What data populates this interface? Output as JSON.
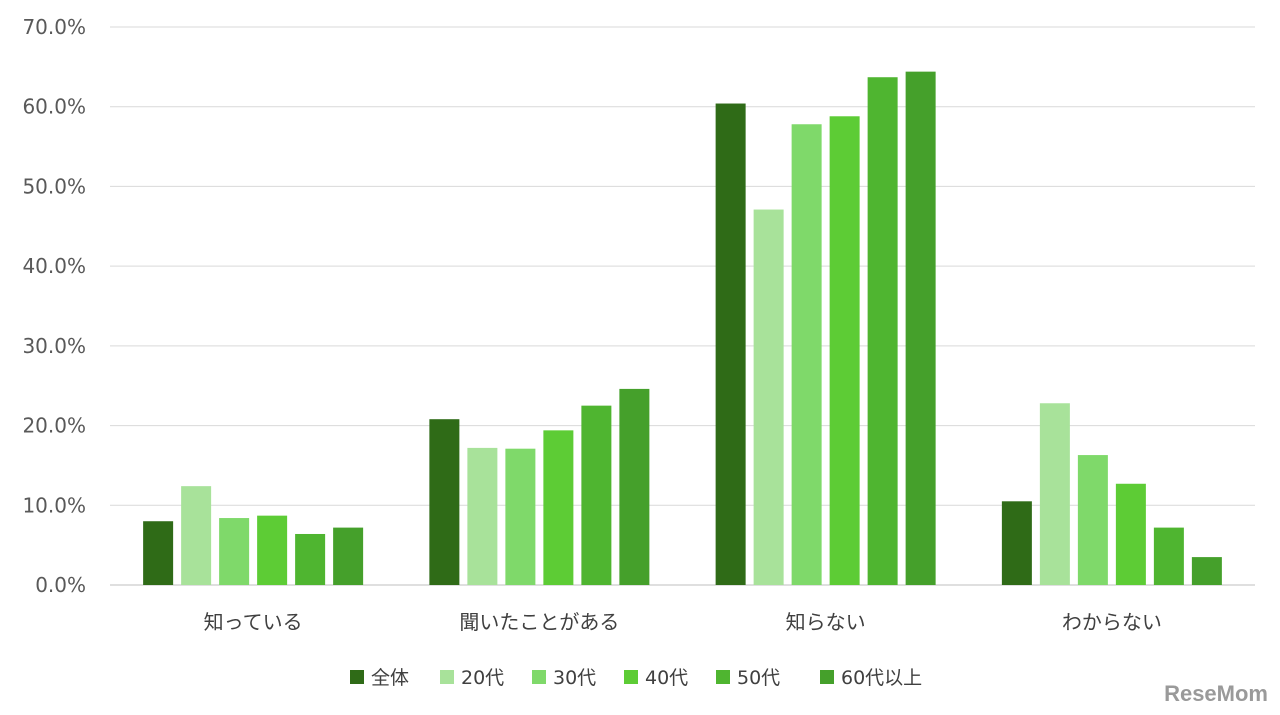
{
  "chart_data": {
    "type": "bar",
    "categories": [
      "知っている",
      "聞いたことがある",
      "知らない",
      "わからない"
    ],
    "series": [
      {
        "name": "全体",
        "color": "#2f6b17",
        "values": [
          8.0,
          20.8,
          60.4,
          10.5
        ]
      },
      {
        "name": "20代",
        "color": "#a8e29a",
        "values": [
          12.4,
          17.2,
          47.1,
          22.8
        ]
      },
      {
        "name": "30代",
        "color": "#7fd96a",
        "values": [
          8.4,
          17.1,
          57.8,
          16.3
        ]
      },
      {
        "name": "40代",
        "color": "#5dcc35",
        "values": [
          8.7,
          19.4,
          58.8,
          12.7
        ]
      },
      {
        "name": "50代",
        "color": "#4fb530",
        "values": [
          6.4,
          22.5,
          63.7,
          7.2
        ]
      },
      {
        "name": "60代以上",
        "color": "#45a02b",
        "values": [
          7.2,
          24.6,
          64.4,
          3.5
        ]
      }
    ],
    "yticks": [
      "0.0%",
      "10.0%",
      "20.0%",
      "30.0%",
      "40.0%",
      "50.0%",
      "60.0%",
      "70.0%"
    ],
    "ylim": [
      0,
      70
    ],
    "grid": true,
    "legend": "bottom"
  },
  "watermark": "ReseMom"
}
